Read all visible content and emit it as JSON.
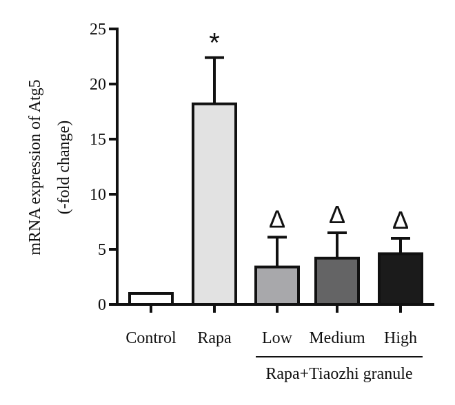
{
  "chart_data": {
    "type": "bar",
    "categories": [
      "Control",
      "Rapa",
      "Low",
      "Medium",
      "High"
    ],
    "values": [
      1.0,
      18.2,
      3.4,
      4.2,
      4.6
    ],
    "error": [
      0.0,
      4.2,
      2.7,
      2.3,
      1.4
    ],
    "bar_colors": [
      "#ffffff",
      "#e2e2e2",
      "#a8a8ab",
      "#646465",
      "#1b1b1b"
    ],
    "annotations": [
      "",
      "*",
      "Δ",
      "Δ",
      "Δ"
    ],
    "ylabel_line1": "mRNA expression of Atg5",
    "ylabel_line2": "(-fold change)",
    "group_label": "Rapa+Tiaozhi granule",
    "grouped_categories": [
      "Low",
      "Medium",
      "High"
    ],
    "y_ticks": [
      0,
      5,
      10,
      15,
      20,
      25
    ],
    "ylim": [
      0,
      25
    ],
    "grid": false
  }
}
